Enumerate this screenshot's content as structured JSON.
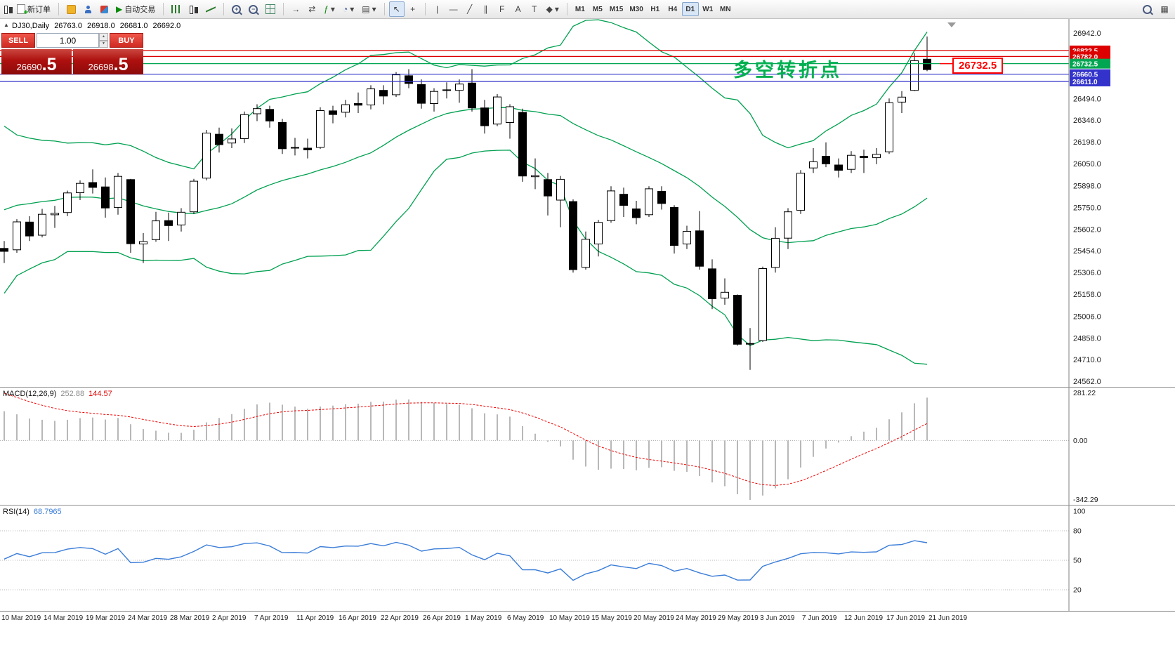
{
  "toolbar": {
    "new_order_label": "新订单",
    "autotrading_label": "自动交易",
    "timeframes": [
      "M1",
      "M5",
      "M15",
      "M30",
      "H1",
      "H4",
      "D1",
      "W1",
      "MN"
    ],
    "active_timeframe": "D1"
  },
  "icons": {
    "collapse": "▲",
    "dropdown": "▾",
    "play": "▶",
    "cursor": "↖",
    "crosshair": "+",
    "vline": "|",
    "hline": "—",
    "trendline": "╱",
    "channel": "∥",
    "fibonacci": "F",
    "text": "A",
    "label": "T",
    "shapes": "◆",
    "zoom_in": "+",
    "zoom_out": "−",
    "spin_up": "▲",
    "spin_down": "▼",
    "auto_scroll": "→",
    "chart_shift": "⇄",
    "indicators": "ƒ",
    "periods": "◔",
    "templates": "▤",
    "window": "▦"
  },
  "info_line": {
    "symbol": "DJ30,Daily",
    "open": "26763.0",
    "high": "26918.0",
    "low": "26681.0",
    "close": "26692.0"
  },
  "one_click": {
    "sell_label": "SELL",
    "buy_label": "BUY",
    "volume": "1.00",
    "sell_price_main": "26690",
    "sell_price_pips": ".5",
    "buy_price_main": "26698",
    "buy_price_pips": ".5"
  },
  "annotation": {
    "text": "多空转折点",
    "price_box_value": "26732.5"
  },
  "levels": [
    {
      "price": 26822.5,
      "label": "26822.5",
      "color": "#dd0000"
    },
    {
      "price": 26782.0,
      "label": "26782.0",
      "color": "#dd0000"
    },
    {
      "price": 26732.5,
      "label": "26732.5",
      "color": "#00a651"
    },
    {
      "price": 26660.5,
      "label": "26660.5",
      "color": "#3333cc"
    },
    {
      "price": 26611.0,
      "label": "26611.0",
      "color": "#3333cc"
    }
  ],
  "macd": {
    "label": "MACD(12,26,9)",
    "main_value": "252.88",
    "signal_value": "144.57",
    "axis_labels": [
      "281.22",
      "0.00",
      "-342.29"
    ]
  },
  "rsi": {
    "label": "RSI(14)",
    "value": "68.7965",
    "axis_labels": [
      "100",
      "80",
      "50",
      "20"
    ],
    "levels": [
      80,
      50,
      20
    ]
  },
  "colors": {
    "band": "#00a050",
    "bull": "#ffffff",
    "bear": "#000000",
    "wick": "#000000",
    "macd_hist": "#b8b8b8",
    "macd_signal": "#ee0000",
    "rsi_line": "#3b7dd8",
    "annotation_green": "#00b050",
    "panel_red": "#ad100e",
    "button_red": "#e03c3c",
    "axis_text": "#222222"
  },
  "chart_data": {
    "type": "candlestick",
    "symbol": "DJ30",
    "period": "Daily",
    "bollinger": {
      "period": 20,
      "deviation": 2
    },
    "macd_params": [
      12,
      26,
      9
    ],
    "rsi_period": 14,
    "price_axis": {
      "min": 24562.0,
      "max": 26942.0,
      "labels": [
        "26942.0",
        "26494.0",
        "26346.0",
        "26198.0",
        "26050.0",
        "25898.0",
        "25750.0",
        "25602.0",
        "25454.0",
        "25306.0",
        "25158.0",
        "25006.0",
        "24858.0",
        "24710.0",
        "24562.0"
      ]
    },
    "x_labels": [
      "10 Mar 2019",
      "14 Mar 2019",
      "19 Mar 2019",
      "24 Mar 2019",
      "28 Mar 2019",
      "2 Apr 2019",
      "7 Apr 2019",
      "11 Apr 2019",
      "16 Apr 2019",
      "22 Apr 2019",
      "26 Apr 2019",
      "1 May 2019",
      "6 May 2019",
      "10 May 2019",
      "15 May 2019",
      "20 May 2019",
      "24 May 2019",
      "29 May 2019",
      "3 Jun 2019",
      "7 Jun 2019",
      "12 Jun 2019",
      "17 Jun 2019",
      "21 Jun 2019"
    ],
    "warmup_closes": [
      24528,
      24580,
      24999,
      25014,
      25063,
      25239,
      25411,
      25390,
      25425,
      25106,
      25053,
      25320,
      25425,
      25543,
      25439,
      25883,
      25891,
      25954,
      25850,
      26032,
      26092,
      26058,
      25985,
      25916,
      26026,
      25820,
      25806,
      25673,
      25473
    ],
    "candles": [
      [
        25470,
        25520,
        25370,
        25450
      ],
      [
        25460,
        25670,
        25440,
        25651
      ],
      [
        25650,
        25690,
        25520,
        25555
      ],
      [
        25560,
        25740,
        25545,
        25703
      ],
      [
        25700,
        25760,
        25610,
        25710
      ],
      [
        25715,
        25865,
        25690,
        25849
      ],
      [
        25850,
        25935,
        25800,
        25914
      ],
      [
        25920,
        26010,
        25845,
        25887
      ],
      [
        25890,
        25955,
        25680,
        25746
      ],
      [
        25750,
        25985,
        25700,
        25962
      ],
      [
        25940,
        25945,
        25440,
        25502
      ],
      [
        25500,
        25575,
        25370,
        25517
      ],
      [
        25530,
        25720,
        25515,
        25658
      ],
      [
        25660,
        25715,
        25520,
        25626
      ],
      [
        25630,
        25745,
        25585,
        25717
      ],
      [
        25720,
        25945,
        25705,
        25929
      ],
      [
        25950,
        26280,
        25935,
        26258
      ],
      [
        26250,
        26295,
        26125,
        26179
      ],
      [
        26190,
        26290,
        26155,
        26218
      ],
      [
        26220,
        26405,
        26190,
        26384
      ],
      [
        26390,
        26455,
        26340,
        26425
      ],
      [
        26420,
        26445,
        26295,
        26341
      ],
      [
        26330,
        26355,
        26115,
        26151
      ],
      [
        26160,
        26225,
        26105,
        26157
      ],
      [
        26155,
        26220,
        26085,
        26143
      ],
      [
        26160,
        26435,
        26150,
        26412
      ],
      [
        26410,
        26445,
        26325,
        26385
      ],
      [
        26400,
        26485,
        26365,
        26452
      ],
      [
        26460,
        26535,
        26395,
        26449
      ],
      [
        26450,
        26585,
        26420,
        26560
      ],
      [
        26550,
        26585,
        26455,
        26511
      ],
      [
        26520,
        26675,
        26505,
        26656
      ],
      [
        26650,
        26695,
        26565,
        26597
      ],
      [
        26590,
        26625,
        26425,
        26462
      ],
      [
        26460,
        26565,
        26405,
        26543
      ],
      [
        26550,
        26605,
        26495,
        26554
      ],
      [
        26550,
        26625,
        26465,
        26593
      ],
      [
        26600,
        26695,
        26405,
        26430
      ],
      [
        26430,
        26485,
        26255,
        26308
      ],
      [
        26320,
        26525,
        26305,
        26505
      ],
      [
        26330,
        26455,
        26220,
        26438
      ],
      [
        26400,
        26425,
        25925,
        25965
      ],
      [
        25960,
        26085,
        25875,
        25967
      ],
      [
        25940,
        25985,
        25695,
        25828
      ],
      [
        25800,
        25965,
        25615,
        25942
      ],
      [
        25790,
        25805,
        25305,
        25325
      ],
      [
        25340,
        25585,
        25325,
        25532
      ],
      [
        25500,
        25665,
        25415,
        25648
      ],
      [
        25660,
        25895,
        25645,
        25863
      ],
      [
        25840,
        25885,
        25685,
        25764
      ],
      [
        25740,
        25795,
        25635,
        25680
      ],
      [
        25700,
        25895,
        25685,
        25877
      ],
      [
        25860,
        25895,
        25735,
        25777
      ],
      [
        25750,
        25765,
        25435,
        25490
      ],
      [
        25500,
        25625,
        25465,
        25586
      ],
      [
        25590,
        25725,
        25325,
        25348
      ],
      [
        25330,
        25395,
        25055,
        25126
      ],
      [
        25130,
        25265,
        25085,
        25170
      ],
      [
        25150,
        25155,
        24805,
        24815
      ],
      [
        24820,
        24925,
        24640,
        24819
      ],
      [
        24840,
        25345,
        24830,
        25332
      ],
      [
        25340,
        25615,
        25305,
        25539
      ],
      [
        25540,
        25745,
        25465,
        25720
      ],
      [
        25730,
        26005,
        25705,
        25984
      ],
      [
        26020,
        26155,
        25985,
        26062
      ],
      [
        26100,
        26195,
        26025,
        26048
      ],
      [
        26040,
        26085,
        25955,
        26004
      ],
      [
        26010,
        26135,
        25985,
        26106
      ],
      [
        26100,
        26145,
        25985,
        26090
      ],
      [
        26090,
        26155,
        26045,
        26113
      ],
      [
        26130,
        26495,
        26115,
        26465
      ],
      [
        26470,
        26545,
        26395,
        26504
      ],
      [
        26550,
        26805,
        26545,
        26753
      ],
      [
        26763,
        26918,
        26681,
        26692
      ]
    ]
  }
}
